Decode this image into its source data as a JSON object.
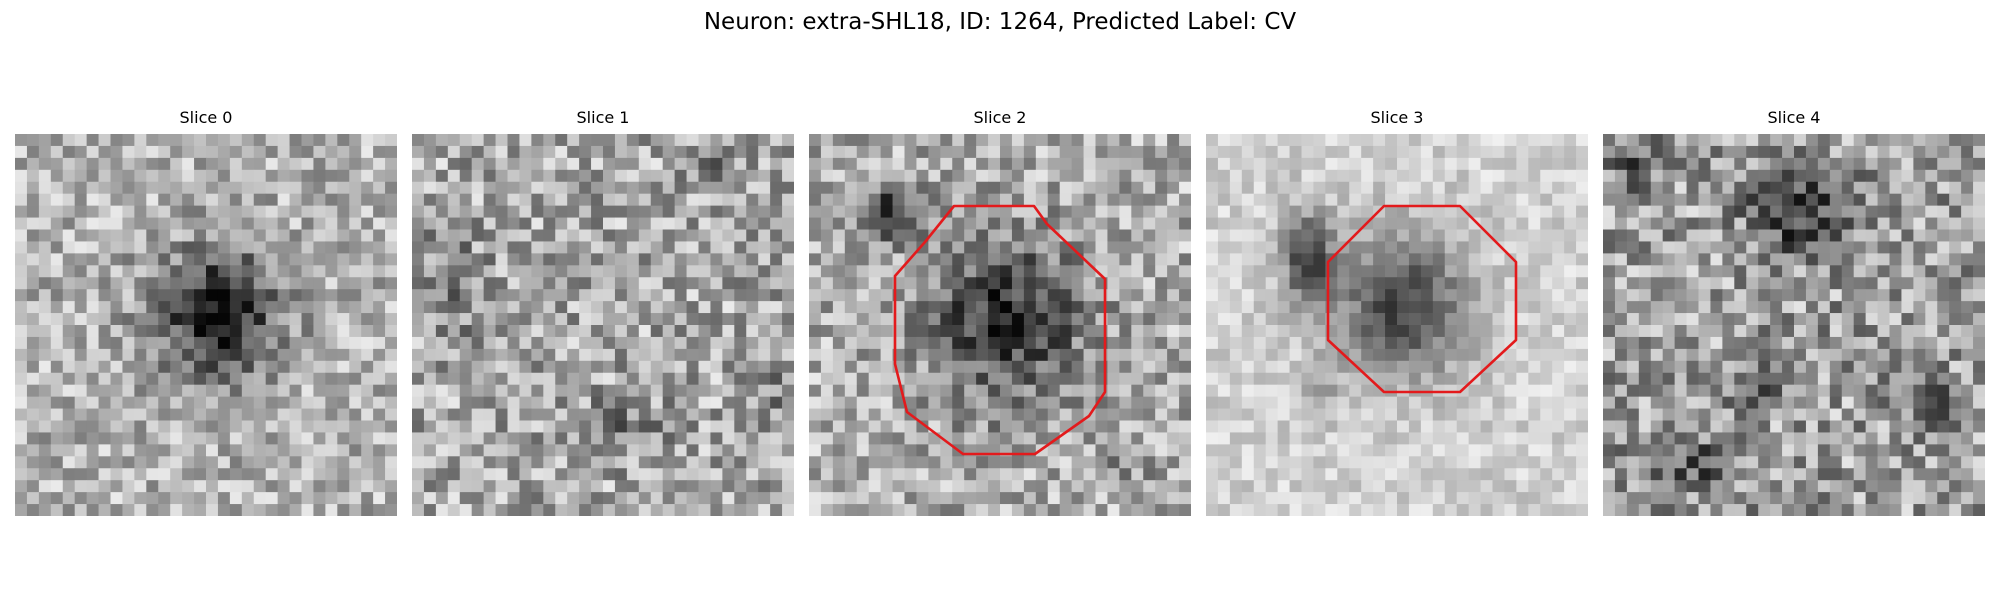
{
  "figure": {
    "title": "Neuron: extra-SHL18, ID: 1264, Predicted Label: CV"
  },
  "panels": [
    {
      "title": "Slice 0",
      "has_outline": false
    },
    {
      "title": "Slice 1",
      "has_outline": false
    },
    {
      "title": "Slice 2",
      "has_outline": true
    },
    {
      "title": "Slice 3",
      "has_outline": true
    },
    {
      "title": "Slice 4",
      "has_outline": false
    }
  ],
  "colors": {
    "outline": "#e31a1c",
    "colormap": "grayscale"
  }
}
